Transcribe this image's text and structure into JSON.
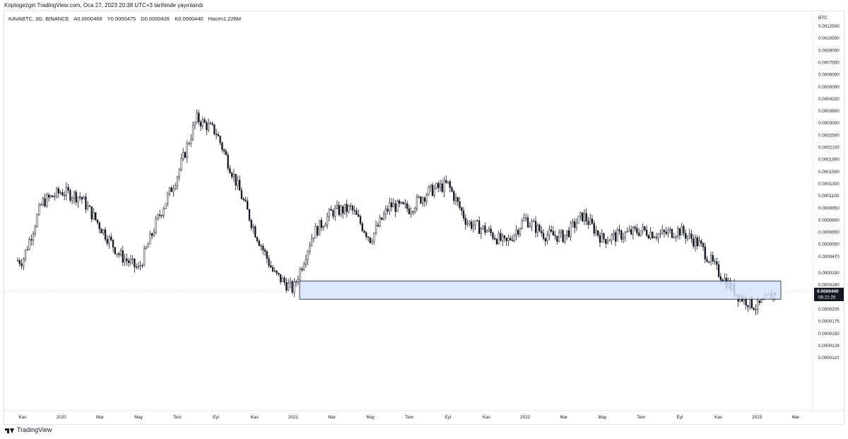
{
  "header": {
    "published": "Kriptogezgin TradingView.com, Oca 27, 2023 20:38 UTC+3 tarihinde yayınlandı"
  },
  "symbol_info": {
    "ticker": "KAVABTC, 3G, BINANCE",
    "open": "A0.0000469",
    "high": "Y0.0000475",
    "low": "D0.0000426",
    "close": "K0.0000440",
    "volume": "Hacim1.226M"
  },
  "footer": {
    "brand": "TradingView"
  },
  "colors": {
    "candle": "#131722",
    "zone_fill": "#d6e4fb",
    "zone_border": "#131722",
    "grid": "#e0e3eb",
    "price_tag": "#131722"
  },
  "chart_data": {
    "type": "candlestick",
    "yscale": "log",
    "currency_label": "BTC",
    "price_ticks": [
      "0.0012500",
      "0.0010500",
      "0.0009000",
      "0.0007500",
      "0.0006000",
      "0.0005000",
      "0.0004200",
      "0.0003600",
      "0.0003000",
      "0.0002500",
      "0.0002100",
      "0.0001800",
      "0.0001500",
      "0.0001300",
      "0.0001100",
      "0.0000950",
      "0.0000800",
      "0.0000650",
      "0.0000550",
      "0.0000470",
      "0.0000330",
      "0.0000280",
      "0.0000240",
      "0.0000205",
      "0.0000175",
      "0.0000150",
      "0.0000128",
      "0.0000110"
    ],
    "time_ticks": [
      "Kas",
      "2020",
      "Mar",
      "May",
      "Tem",
      "Eyl",
      "Kas",
      "2021",
      "Mar",
      "May",
      "Tem",
      "Eyl",
      "Kas",
      "2022",
      "Mar",
      "May",
      "Tem",
      "Eyl",
      "Kas",
      "2023",
      "Mar"
    ],
    "current_price": "0.0000440",
    "countdown": "06:21:25",
    "support_zone": {
      "low": 3.98e-05,
      "high": 5e-05,
      "from": "2021",
      "to": "Şub 2023"
    },
    "price_path": [
      [
        "Kas 2019",
        6.5e-05
      ],
      [
        "Ara 2019",
        0.000135
      ],
      [
        "Oca 2020",
        0.000155
      ],
      [
        "Şub 2020",
        0.000145
      ],
      [
        "Mar 2020",
        0.0001
      ],
      [
        "Nis 2020",
        7e-05
      ],
      [
        "May 2020",
        5.8e-05
      ],
      [
        "Haz 2020",
        0.00011
      ],
      [
        "Tem 2020",
        0.00019
      ],
      [
        "Ağu 2020",
        0.00039
      ],
      [
        "Eyl 2020",
        0.00033
      ],
      [
        "Eki 2020",
        0.00018
      ],
      [
        "Kas 2020",
        9.5e-05
      ],
      [
        "Ara 2020",
        5.5e-05
      ],
      [
        "Oca 2021",
        4.5e-05
      ],
      [
        "Şub 2021",
        9e-05
      ],
      [
        "Mar 2021",
        0.00012
      ],
      [
        "Nis 2021",
        0.000125
      ],
      [
        "May 2021",
        8.5e-05
      ],
      [
        "Haz 2021",
        0.00013
      ],
      [
        "Tem 2021",
        0.000125
      ],
      [
        "Ağu 2021",
        0.000155
      ],
      [
        "Eyl 2021",
        0.00017
      ],
      [
        "Eki 2021",
        0.000105
      ],
      [
        "Kas 2021",
        9.5e-05
      ],
      [
        "Ara 2021",
        8e-05
      ],
      [
        "Oca 2022",
        0.00011
      ],
      [
        "Şub 2022",
        9e-05
      ],
      [
        "Mar 2022",
        8.8e-05
      ],
      [
        "Nis 2022",
        0.000115
      ],
      [
        "May 2022",
        8.5e-05
      ],
      [
        "Haz 2022",
        9e-05
      ],
      [
        "Tem 2022",
        9.5e-05
      ],
      [
        "Ağu 2022",
        9e-05
      ],
      [
        "Eyl 2022",
        9.5e-05
      ],
      [
        "Eki 2022",
        8e-05
      ],
      [
        "Kas 2022",
        5.6e-05
      ],
      [
        "Ara 2022",
        4.2e-05
      ],
      [
        "Oca 2023",
        3.6e-05
      ],
      [
        "Şub 2023",
        4.4e-05
      ]
    ]
  }
}
